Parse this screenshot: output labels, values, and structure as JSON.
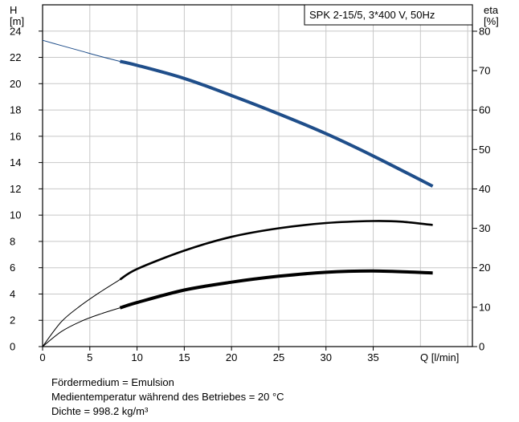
{
  "chart_data": {
    "type": "line",
    "title": "SPK 2-15/5, 3*400 V, 50Hz",
    "xlabel": "Q [l/min]",
    "x_tick_labels": [
      "0",
      "5",
      "10",
      "15",
      "20",
      "25",
      "30",
      "35"
    ],
    "xlim": [
      0,
      45.5
    ],
    "y_left": {
      "label_line1": "H",
      "label_line2": "[m]",
      "ylim": [
        0,
        26
      ],
      "ticks": [
        0,
        2,
        4,
        6,
        8,
        10,
        12,
        14,
        16,
        18,
        20,
        22,
        24
      ]
    },
    "y_right": {
      "label_line1": "eta",
      "label_line2": "[%]",
      "ylim": [
        0,
        86.7
      ],
      "ticks": [
        0,
        10,
        20,
        30,
        40,
        50,
        60,
        70,
        80
      ]
    },
    "grid": true,
    "series": [
      {
        "axis": "left",
        "color": "#1f4e8a",
        "x": [
          0,
          2,
          4,
          6,
          8.2,
          10,
          15,
          20,
          25,
          30,
          35,
          41.3
        ],
        "y": [
          23.3,
          22.9,
          22.5,
          22.1,
          21.7,
          21.4,
          20.4,
          19.1,
          17.7,
          16.2,
          14.5,
          12.2
        ],
        "thin_until_x": 8.2
      },
      {
        "axis": "left",
        "color": "#000000",
        "x": [
          0,
          2,
          4,
          6,
          8.2,
          10,
          15,
          20,
          25,
          30,
          35,
          38,
          41.3
        ],
        "y": [
          0,
          1.9,
          3.1,
          4.1,
          5.1,
          5.9,
          7.3,
          8.35,
          9.0,
          9.4,
          9.55,
          9.5,
          9.25
        ],
        "thin_until_x": 8.2
      },
      {
        "axis": "left",
        "color": "#000000",
        "x": [
          0,
          2,
          4,
          6,
          8.2,
          10,
          15,
          20,
          25,
          30,
          35,
          41.3
        ],
        "y": [
          0,
          1.15,
          1.9,
          2.45,
          2.95,
          3.35,
          4.3,
          4.9,
          5.35,
          5.65,
          5.75,
          5.6
        ],
        "thin_until_x": 8.2,
        "thick": true
      }
    ]
  },
  "notes": {
    "line1": "Fördermedium = Emulsion",
    "line2": "Medientemperatur während des Betriebes = 20 °C",
    "line3": "Dichte = 998.2 kg/m³"
  }
}
